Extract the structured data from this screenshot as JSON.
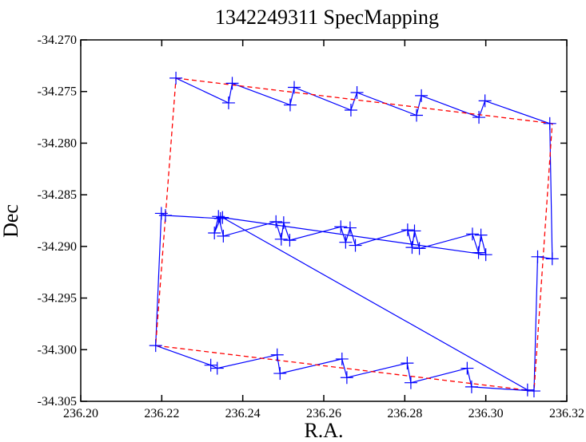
{
  "chart_data": {
    "type": "line",
    "title": "1342249311 SpecMapping",
    "xlabel": "R.A.",
    "ylabel": "Dec",
    "xlim": [
      236.2,
      236.32
    ],
    "ylim": [
      -34.305,
      -34.27
    ],
    "x_ticks": [
      236.2,
      236.22,
      236.24,
      236.26,
      236.28,
      236.3,
      236.32
    ],
    "x_tick_labels": [
      "236.20",
      "236.22",
      "236.24",
      "236.26",
      "236.28",
      "236.30",
      "236.32"
    ],
    "y_ticks": [
      -34.27,
      -34.275,
      -34.28,
      -34.285,
      -34.29,
      -34.295,
      -34.3,
      -34.305
    ],
    "y_tick_labels": [
      "-34.270",
      "-34.275",
      "-34.280",
      "-34.285",
      "-34.290",
      "-34.295",
      "-34.300",
      "-34.305"
    ],
    "grid": false,
    "colors": {
      "blue": "#0000ff",
      "red": "#ff0000",
      "axis": "#000000"
    },
    "series": [
      {
        "style": "solid-blue-markers",
        "x": [
          236.2235,
          236.2365,
          236.2374,
          236.2517,
          236.2527,
          236.2667,
          236.2682,
          236.2829,
          236.2841,
          236.2983,
          236.2998,
          236.3158,
          236.3164,
          236.3128,
          236.3119,
          236.2965,
          236.2954,
          236.2815,
          236.2806,
          236.2657,
          236.2645,
          236.2492,
          236.2485,
          236.2337,
          236.2321,
          236.2185,
          236.2199,
          236.2209,
          236.2345,
          236.233,
          236.234,
          236.2352,
          236.2482,
          236.2495,
          236.2501,
          236.2516,
          236.2642,
          236.2654,
          236.2665,
          236.2678,
          236.2807,
          236.2818,
          236.2824,
          236.2836,
          236.2967,
          236.2982,
          236.2988,
          236.3,
          236.235,
          236.3103
        ],
        "y": [
          -34.2737,
          -34.2761,
          -34.2742,
          -34.2763,
          -34.2746,
          -34.2768,
          -34.2751,
          -34.2773,
          -34.2754,
          -34.2775,
          -34.2759,
          -34.2781,
          -34.2912,
          -34.291,
          -34.304,
          -34.3036,
          -34.3018,
          -34.3032,
          -34.3013,
          -34.3027,
          -34.3009,
          -34.3023,
          -34.3005,
          -34.3018,
          -34.3015,
          -34.2996,
          -34.2868,
          -34.287,
          -34.2873,
          -34.2887,
          -34.2871,
          -34.289,
          -34.2876,
          -34.2893,
          -34.2877,
          -34.2894,
          -34.2881,
          -34.2896,
          -34.2882,
          -34.2899,
          -34.2884,
          -34.2901,
          -34.2885,
          -34.2902,
          -34.2888,
          -34.2906,
          -34.2889,
          -34.2908,
          -34.2872,
          -34.3039
        ]
      },
      {
        "style": "dashed-red",
        "x": [
          236.2235,
          236.3164,
          236.3119,
          236.2185,
          236.2235
        ],
        "y": [
          -34.2737,
          -34.2781,
          -34.304,
          -34.2996,
          -34.2737
        ]
      }
    ]
  }
}
